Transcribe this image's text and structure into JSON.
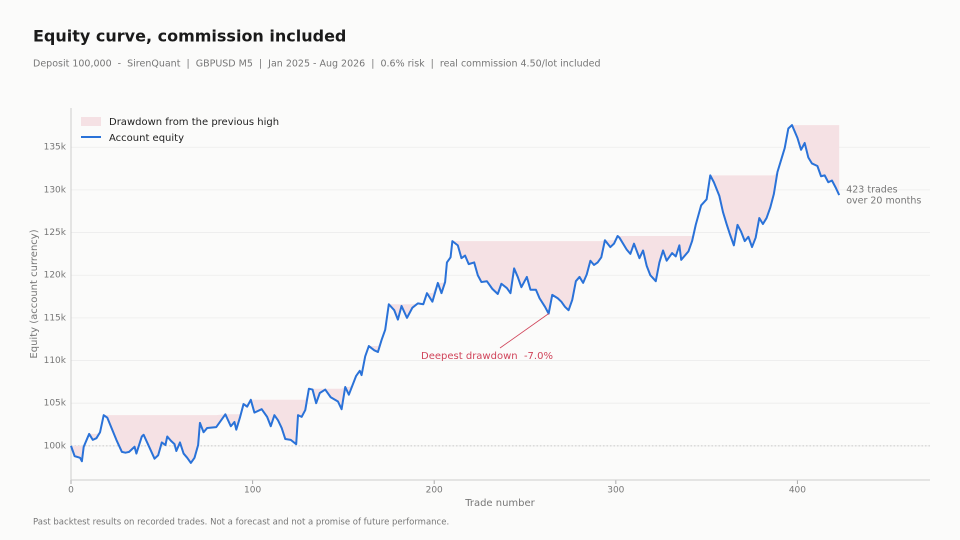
{
  "chart_data": {
    "type": "line",
    "title": "Equity curve, commission included",
    "subtitle": "Deposit 100,000  -  SirenQuant  |  GBPUSD M5  |  Jan 2025 - Aug 2026  |  0.6% risk  |  real commission 4.50/lot included",
    "xlabel": "Trade number",
    "ylabel": "Equity (account currency)",
    "footnote": "Past backtest results on recorded trades. Not a forecast and not a promise of future performance.",
    "annotation": "Deepest drawdown  -7.0%",
    "end_label": [
      "423 trades",
      "over 20 months"
    ],
    "drawdown": {
      "name": "Drawdown from the previous high",
      "color": "#f5e1e4"
    },
    "reference_line": 100000,
    "legend": "upper left",
    "grid": true,
    "xlim": [
      0,
      473
    ],
    "xticks": [
      0,
      100,
      200,
      300,
      400
    ],
    "ylim": [
      96000,
      139600
    ],
    "yticks": [
      {
        "value": 100000,
        "label": "100k"
      },
      {
        "value": 105000,
        "label": "105k"
      },
      {
        "value": 110000,
        "label": "110k"
      },
      {
        "value": 115000,
        "label": "115k"
      },
      {
        "value": 120000,
        "label": "120k"
      },
      {
        "value": 125000,
        "label": "125k"
      },
      {
        "value": 130000,
        "label": "130k"
      },
      {
        "value": 135000,
        "label": "135k"
      }
    ],
    "x": [
      0,
      2,
      5,
      6,
      7,
      9,
      10,
      12,
      14,
      16,
      18,
      20,
      25,
      28,
      30,
      32,
      35,
      36,
      39,
      40,
      43,
      46,
      48,
      50,
      52,
      53,
      55,
      57,
      58,
      60,
      62,
      64,
      66,
      68,
      70,
      71,
      73,
      75,
      80,
      85,
      88,
      90,
      91,
      93,
      95,
      97,
      99,
      101,
      105,
      108,
      110,
      112,
      114,
      116,
      118,
      121,
      124,
      125,
      127,
      129,
      131,
      133,
      135,
      137,
      140,
      143,
      147,
      149,
      151,
      153,
      155,
      157,
      159,
      160,
      162,
      164,
      167,
      169,
      171,
      173,
      175,
      178,
      180,
      182,
      185,
      188,
      191,
      194,
      196,
      199,
      202,
      204,
      206,
      207,
      209,
      210,
      213,
      215,
      217,
      219,
      222,
      224,
      226,
      229,
      232,
      235,
      237,
      240,
      242,
      244,
      246,
      248,
      251,
      253,
      256,
      258,
      261,
      263,
      265,
      268,
      270,
      272,
      274,
      276,
      278,
      280,
      282,
      284,
      286,
      288,
      290,
      292,
      294,
      297,
      299,
      301,
      302,
      306,
      308,
      310,
      313,
      315,
      317,
      319,
      322,
      324,
      326,
      328,
      331,
      333,
      335,
      336,
      340,
      342,
      344,
      347,
      350,
      352,
      354,
      357,
      359,
      361,
      363,
      365,
      367,
      369,
      371,
      373,
      375,
      377,
      379,
      381,
      383,
      385,
      387,
      389,
      391,
      393,
      395,
      397,
      400,
      402,
      404,
      406,
      408,
      411,
      413,
      415,
      417,
      419,
      421,
      423
    ],
    "series": [
      {
        "name": "Account equity",
        "color": "#2a72d8",
        "values": [
          100000,
          98800,
          98600,
          98200,
          99900,
          100900,
          101400,
          100700,
          100900,
          101600,
          103600,
          103300,
          100700,
          99300,
          99200,
          99300,
          99900,
          99100,
          101100,
          101300,
          99900,
          98500,
          98900,
          100400,
          100100,
          101100,
          100600,
          100200,
          99400,
          100400,
          99100,
          98600,
          98000,
          98600,
          100100,
          102700,
          101600,
          102100,
          102200,
          103700,
          102300,
          102800,
          101900,
          103300,
          104900,
          104600,
          105400,
          103900,
          104300,
          103400,
          102300,
          103600,
          103000,
          102100,
          100800,
          100700,
          100200,
          103600,
          103400,
          104200,
          106700,
          106600,
          105000,
          106200,
          106600,
          105700,
          105200,
          104300,
          106900,
          106000,
          107100,
          108200,
          108800,
          108300,
          110500,
          111700,
          111200,
          111000,
          112400,
          113600,
          116600,
          115900,
          114800,
          116400,
          115000,
          116200,
          116700,
          116600,
          117900,
          116900,
          119100,
          117900,
          119200,
          121500,
          122100,
          124000,
          123500,
          122000,
          122300,
          121300,
          121500,
          120000,
          119200,
          119300,
          118400,
          117800,
          119000,
          118500,
          117900,
          120800,
          119800,
          118600,
          119800,
          118300,
          118300,
          117300,
          116300,
          115500,
          117700,
          117300,
          116900,
          116300,
          115900,
          117100,
          119300,
          119800,
          119100,
          120100,
          121700,
          121200,
          121500,
          122100,
          124100,
          123300,
          123700,
          124600,
          124400,
          123000,
          122500,
          123700,
          122000,
          122900,
          121100,
          120000,
          119300,
          121500,
          122900,
          121700,
          122600,
          122200,
          123500,
          121800,
          122800,
          124000,
          125900,
          128200,
          128900,
          131700,
          130900,
          129300,
          127400,
          126000,
          124700,
          123500,
          125900,
          125100,
          124000,
          124500,
          123300,
          124400,
          126700,
          126000,
          126700,
          127900,
          129500,
          132100,
          133500,
          134900,
          137200,
          137600,
          136100,
          134700,
          135500,
          133800,
          133100,
          132800,
          131600,
          131700,
          130900,
          131100,
          130300,
          129400
        ]
      }
    ]
  }
}
